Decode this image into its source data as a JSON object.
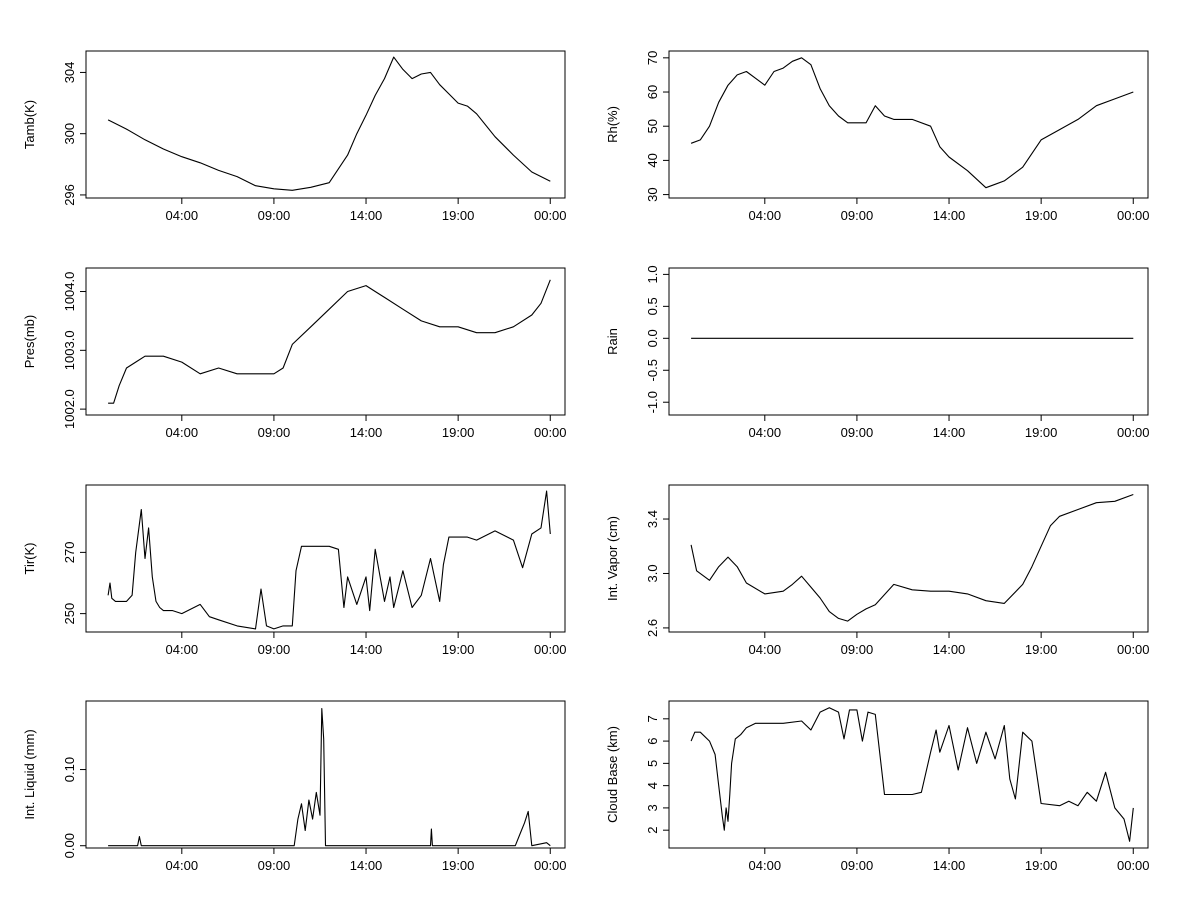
{
  "chart_data": [
    {
      "type": "line",
      "ylabel": "Tamb(K)",
      "ylim": [
        295.8,
        305.4
      ],
      "yticks": [
        296,
        300,
        304
      ],
      "ytick_labels": [
        "296",
        "300",
        "304"
      ],
      "xlim": [
        -1.2,
        24.8
      ],
      "xticks": [
        4,
        9,
        14,
        19,
        24
      ],
      "xtick_labels": [
        "04:00",
        "09:00",
        "14:00",
        "19:00",
        "00:00"
      ],
      "x": [
        0,
        1,
        2,
        3,
        4,
        5,
        6,
        7,
        8,
        9,
        10,
        11,
        12,
        13,
        13.5,
        14,
        14.5,
        15,
        15.5,
        16,
        16.5,
        17,
        17.5,
        18,
        18.5,
        19,
        19.5,
        20,
        21,
        22,
        23,
        24
      ],
      "values": [
        300.9,
        300.3,
        299.6,
        299.0,
        298.5,
        298.1,
        297.6,
        297.2,
        296.6,
        296.4,
        296.3,
        296.5,
        296.8,
        298.6,
        300.0,
        301.2,
        302.5,
        303.6,
        305.0,
        304.2,
        303.6,
        303.9,
        304.0,
        303.2,
        302.6,
        302.0,
        301.8,
        301.3,
        299.8,
        298.6,
        297.5,
        296.9
      ]
    },
    {
      "type": "line",
      "ylabel": "Rh(%)",
      "ylim": [
        29,
        72
      ],
      "yticks": [
        30,
        40,
        50,
        60,
        70
      ],
      "ytick_labels": [
        "30",
        "40",
        "50",
        "60",
        "70"
      ],
      "xlim": [
        -1.2,
        24.8
      ],
      "xticks": [
        4,
        9,
        14,
        19,
        24
      ],
      "xtick_labels": [
        "04:00",
        "09:00",
        "14:00",
        "19:00",
        "00:00"
      ],
      "x": [
        0,
        0.5,
        1,
        1.5,
        2,
        2.5,
        3,
        3.5,
        4,
        4.5,
        5,
        5.5,
        6,
        6.5,
        7,
        7.5,
        8,
        8.5,
        9,
        9.5,
        10,
        10.5,
        11,
        12,
        13,
        13.5,
        14,
        15,
        16,
        16.5,
        17,
        18,
        19,
        20,
        21,
        22,
        23,
        24
      ],
      "values": [
        45,
        46,
        50,
        57,
        62,
        65,
        66,
        64,
        62,
        66,
        67,
        69,
        70,
        68,
        61,
        56,
        53,
        51,
        51,
        51,
        56,
        53,
        52,
        52,
        50,
        44,
        41,
        37,
        32,
        33,
        34,
        38,
        46,
        49,
        52,
        56,
        58,
        60
      ]
    },
    {
      "type": "line",
      "ylabel": "Pres(mb)",
      "ylim": [
        1001.9,
        1004.4
      ],
      "yticks": [
        1002.0,
        1003.0,
        1004.0
      ],
      "ytick_labels": [
        "1002.0",
        "1003.0",
        "1004.0"
      ],
      "xlim": [
        -1.2,
        24.8
      ],
      "xticks": [
        4,
        9,
        14,
        19,
        24
      ],
      "xtick_labels": [
        "04:00",
        "09:00",
        "14:00",
        "19:00",
        "00:00"
      ],
      "x": [
        0,
        0.3,
        0.6,
        1,
        1.5,
        2,
        2.5,
        3,
        4,
        5,
        6,
        7,
        8,
        9,
        9.5,
        10,
        11,
        12,
        13,
        14,
        14.5,
        15,
        16,
        17,
        18,
        19,
        20,
        21,
        22,
        23,
        23.5,
        24
      ],
      "values": [
        1002.1,
        1002.1,
        1002.4,
        1002.7,
        1002.8,
        1002.9,
        1002.9,
        1002.9,
        1002.8,
        1002.6,
        1002.7,
        1002.6,
        1002.6,
        1002.6,
        1002.7,
        1003.1,
        1003.4,
        1003.7,
        1004.0,
        1004.1,
        1004.0,
        1003.9,
        1003.7,
        1003.5,
        1003.4,
        1003.4,
        1003.3,
        1003.3,
        1003.4,
        1003.6,
        1003.8,
        1004.2
      ]
    },
    {
      "type": "line",
      "ylabel": "Rain",
      "ylim": [
        -1.2,
        1.1
      ],
      "yticks": [
        -1.0,
        -0.5,
        0.0,
        0.5,
        1.0
      ],
      "ytick_labels": [
        "-1.0",
        "-0.5",
        "0.0",
        "0.5",
        "1.0"
      ],
      "xlim": [
        -1.2,
        24.8
      ],
      "xticks": [
        4,
        9,
        14,
        19,
        24
      ],
      "xtick_labels": [
        "04:00",
        "09:00",
        "14:00",
        "19:00",
        "00:00"
      ],
      "x": [
        0,
        24
      ],
      "values": [
        0,
        0
      ]
    },
    {
      "type": "line",
      "ylabel": "Tir(K)",
      "ylim": [
        244,
        292
      ],
      "yticks": [
        250,
        270
      ],
      "ytick_labels": [
        "250",
        "270"
      ],
      "xlim": [
        -1.2,
        24.8
      ],
      "xticks": [
        4,
        9,
        14,
        19,
        24
      ],
      "xtick_labels": [
        "04:00",
        "09:00",
        "14:00",
        "19:00",
        "00:00"
      ],
      "x": [
        0,
        0.1,
        0.2,
        0.4,
        1,
        1.3,
        1.5,
        1.8,
        2,
        2.2,
        2.4,
        2.6,
        2.8,
        3,
        3.5,
        4,
        5,
        5.5,
        6,
        7,
        8,
        8.3,
        8.6,
        9,
        9.5,
        10,
        10.2,
        10.5,
        11,
        12,
        12.5,
        12.8,
        13,
        13.5,
        14,
        14.2,
        14.5,
        15,
        15.3,
        15.5,
        16,
        16.5,
        17,
        17.5,
        18,
        18.2,
        18.5,
        19,
        19.5,
        20,
        21,
        22,
        22.5,
        23,
        23.5,
        23.8,
        24
      ],
      "values": [
        256,
        260,
        255,
        254,
        254,
        256,
        270,
        284,
        268,
        278,
        262,
        254,
        252,
        251,
        251,
        250,
        253,
        249,
        248,
        246,
        245,
        258,
        246,
        245,
        246,
        246,
        264,
        272,
        272,
        272,
        271,
        252,
        262,
        253,
        262,
        251,
        271,
        254,
        262,
        252,
        264,
        252,
        256,
        268,
        254,
        266,
        275,
        275,
        275,
        274,
        277,
        274,
        265,
        276,
        278,
        290,
        276
      ]
    },
    {
      "type": "line",
      "ylabel": "Int. Vapor (cm)",
      "ylim": [
        2.57,
        3.65
      ],
      "yticks": [
        2.6,
        3.0,
        3.4
      ],
      "ytick_labels": [
        "2.6",
        "3.0",
        "3.4"
      ],
      "xlim": [
        -1.2,
        24.8
      ],
      "xticks": [
        4,
        9,
        14,
        19,
        24
      ],
      "xtick_labels": [
        "04:00",
        "09:00",
        "14:00",
        "19:00",
        "00:00"
      ],
      "x": [
        0,
        0.3,
        1,
        1.5,
        2,
        2.5,
        3,
        4,
        5,
        5.5,
        6,
        6.5,
        7,
        7.5,
        8,
        8.5,
        9,
        9.5,
        10,
        11,
        12,
        13,
        14,
        15,
        16,
        17,
        18,
        18.5,
        19,
        19.5,
        20,
        21,
        22,
        23,
        24
      ],
      "values": [
        3.21,
        3.02,
        2.95,
        3.05,
        3.12,
        3.05,
        2.93,
        2.85,
        2.87,
        2.92,
        2.98,
        2.9,
        2.82,
        2.72,
        2.67,
        2.65,
        2.7,
        2.74,
        2.77,
        2.92,
        2.88,
        2.87,
        2.87,
        2.85,
        2.8,
        2.78,
        2.92,
        3.05,
        3.2,
        3.35,
        3.42,
        3.47,
        3.52,
        3.53,
        3.58
      ]
    },
    {
      "type": "line",
      "ylabel": "Int. Liquid (mm)",
      "ylim": [
        -0.003,
        0.19
      ],
      "yticks": [
        0.0,
        0.1
      ],
      "ytick_labels": [
        "0.00",
        "0.10"
      ],
      "xlim": [
        -1.2,
        24.8
      ],
      "xticks": [
        4,
        9,
        14,
        19,
        24
      ],
      "xtick_labels": [
        "04:00",
        "09:00",
        "14:00",
        "19:00",
        "00:00"
      ],
      "x": [
        0,
        1.6,
        1.7,
        1.8,
        10.1,
        10.3,
        10.5,
        10.7,
        10.9,
        11.1,
        11.3,
        11.5,
        11.6,
        11.7,
        11.8,
        17.5,
        17.55,
        17.6,
        22.1,
        22.4,
        22.6,
        22.8,
        23.0,
        23.8,
        24
      ],
      "values": [
        0,
        0,
        0.012,
        0,
        0,
        0.035,
        0.055,
        0.02,
        0.06,
        0.035,
        0.07,
        0.04,
        0.18,
        0.14,
        0,
        0,
        0.022,
        0,
        0,
        0.018,
        0.03,
        0.045,
        0,
        0.004,
        0
      ]
    },
    {
      "type": "line",
      "ylabel": "Cloud Base (km)",
      "ylim": [
        1.2,
        7.8
      ],
      "yticks": [
        2,
        3,
        4,
        5,
        6,
        7
      ],
      "ytick_labels": [
        "2",
        "3",
        "4",
        "5",
        "6",
        "7"
      ],
      "xlim": [
        -1.2,
        24.8
      ],
      "xticks": [
        4,
        9,
        14,
        19,
        24
      ],
      "xtick_labels": [
        "04:00",
        "09:00",
        "14:00",
        "19:00",
        "00:00"
      ],
      "x": [
        0,
        0.2,
        0.5,
        1,
        1.3,
        1.5,
        1.7,
        1.8,
        1.9,
        2.0,
        2.1,
        2.2,
        2.4,
        2.7,
        3,
        3.5,
        4,
        5,
        6,
        6.5,
        7,
        7.5,
        8,
        8.3,
        8.6,
        9,
        9.3,
        9.6,
        10,
        10.5,
        11,
        12,
        12.5,
        13,
        13.3,
        13.5,
        14,
        14.5,
        15,
        15.5,
        16,
        16.5,
        17,
        17.3,
        17.6,
        18,
        18.5,
        19,
        20,
        20.5,
        21,
        21.5,
        22,
        22.5,
        23,
        23.5,
        23.8,
        24
      ],
      "values": [
        6.0,
        6.4,
        6.4,
        6.0,
        5.4,
        4.0,
        2.6,
        2.0,
        3.0,
        2.4,
        3.6,
        5.0,
        6.1,
        6.3,
        6.6,
        6.8,
        6.8,
        6.8,
        6.9,
        6.5,
        7.3,
        7.5,
        7.3,
        6.1,
        7.4,
        7.4,
        6.0,
        7.3,
        7.2,
        3.6,
        3.6,
        3.6,
        3.7,
        5.5,
        6.5,
        5.5,
        6.7,
        4.7,
        6.6,
        5.0,
        6.4,
        5.2,
        6.7,
        4.3,
        3.4,
        6.4,
        6.0,
        3.2,
        3.1,
        3.3,
        3.1,
        3.7,
        3.3,
        4.6,
        3.0,
        2.5,
        1.5,
        3.0
      ]
    }
  ]
}
